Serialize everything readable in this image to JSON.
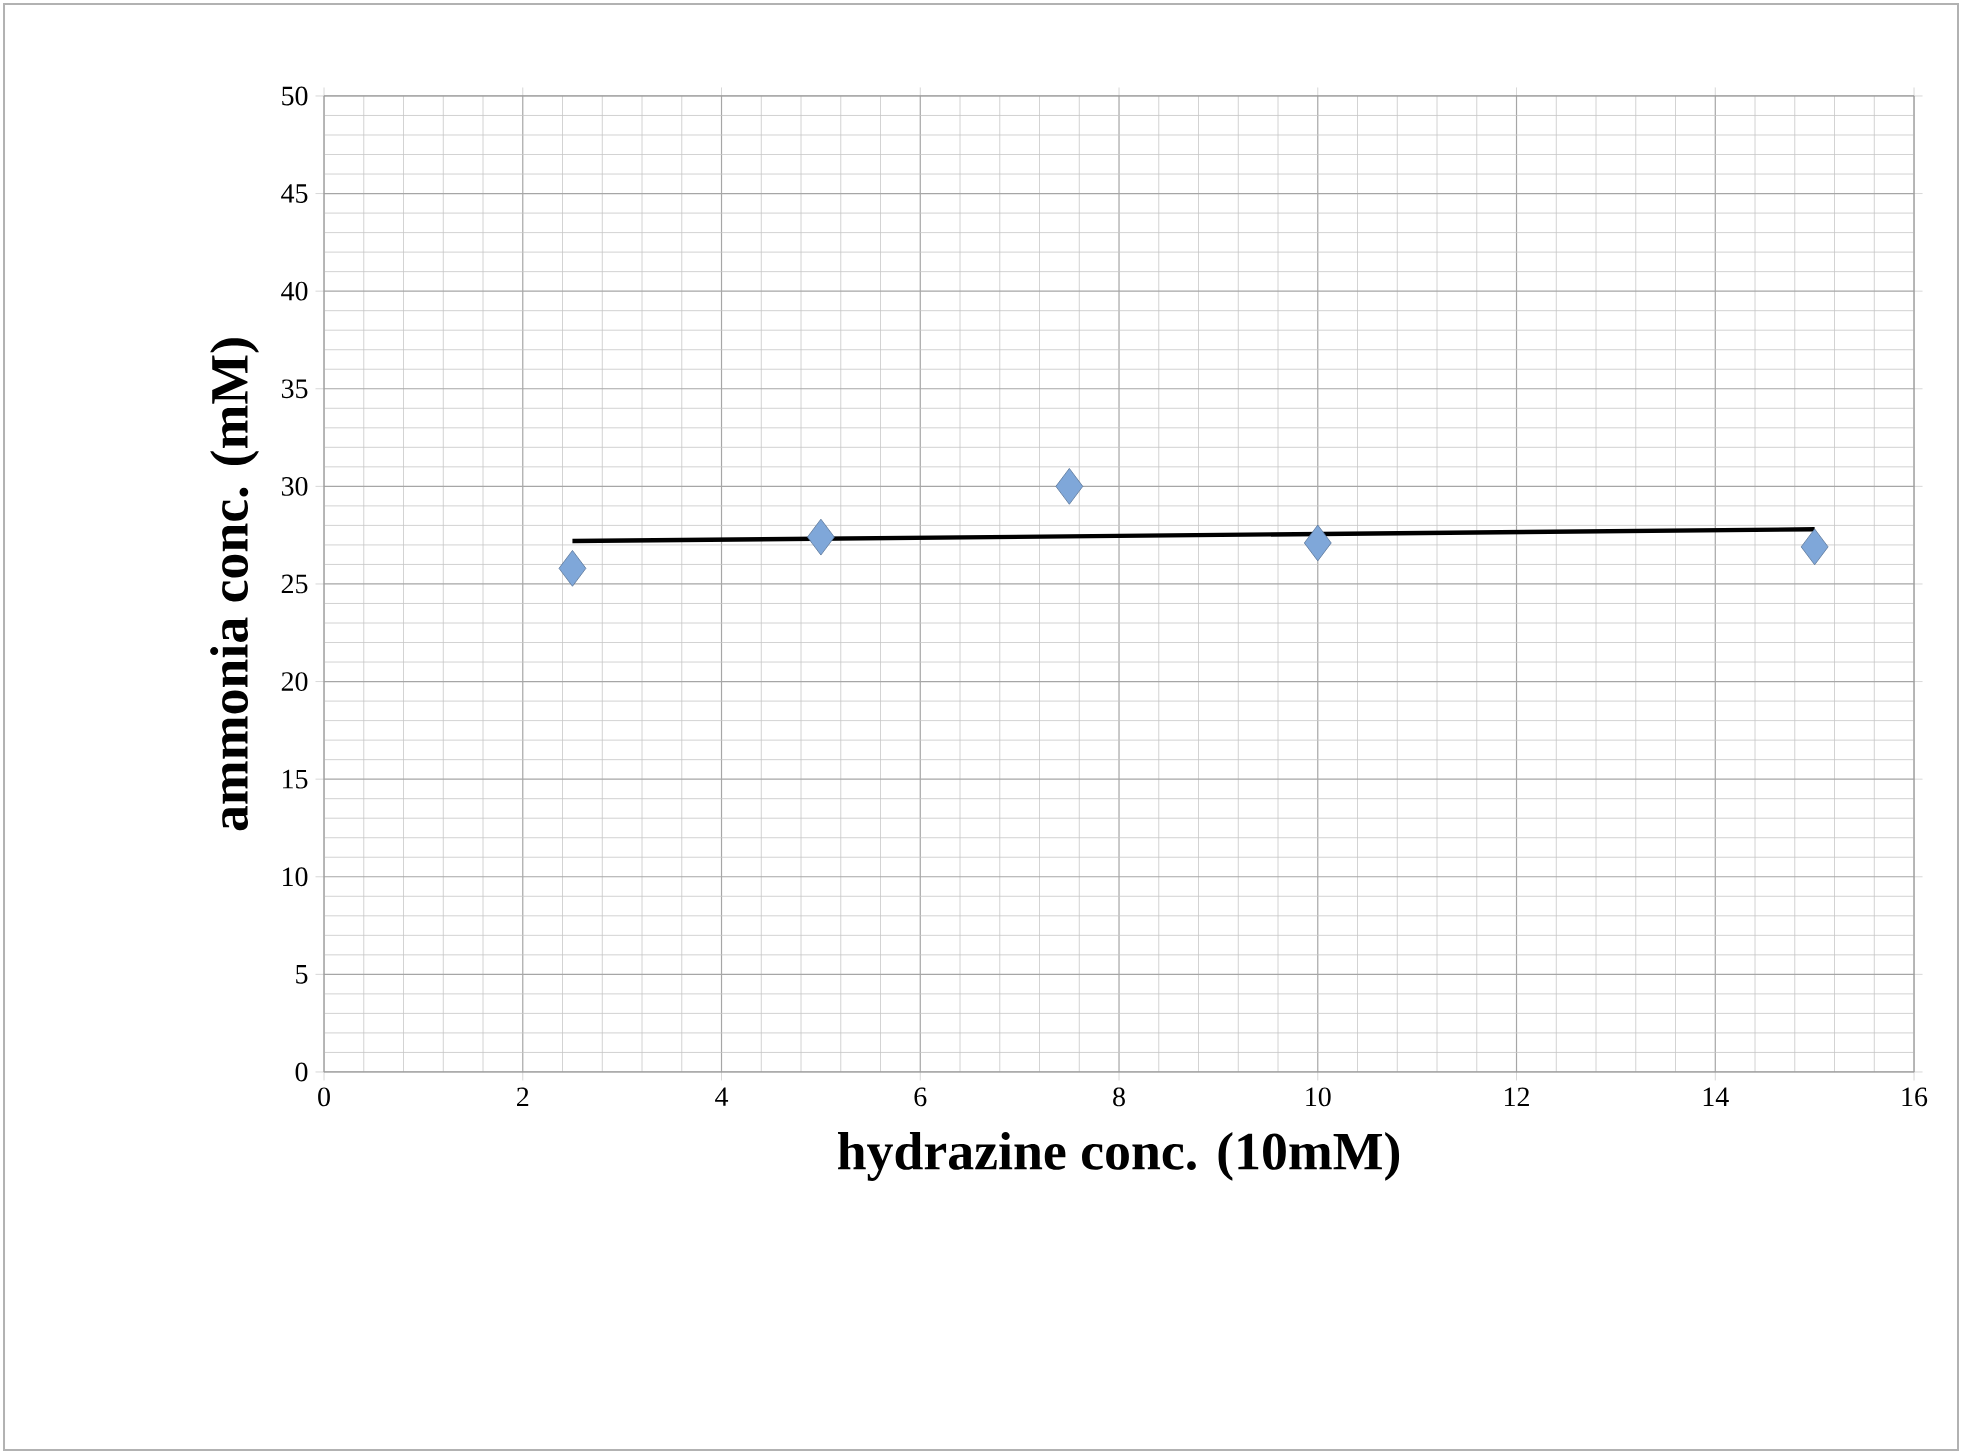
{
  "chart_data": {
    "type": "scatter",
    "xlabel": "hydrazine conc. (10mM)",
    "ylabel": "ammonia conc. (mM)",
    "xlim": [
      0,
      16
    ],
    "ylim": [
      0,
      50
    ],
    "xticks": [
      0,
      2,
      4,
      6,
      8,
      10,
      12,
      14,
      16
    ],
    "yticks": [
      0,
      5,
      10,
      15,
      20,
      25,
      30,
      35,
      40,
      45,
      50
    ],
    "grid": true,
    "marker": "diamond",
    "x": [
      2.5,
      5,
      7.5,
      10,
      15
    ],
    "series": [
      {
        "color": "#7fa7d9",
        "values": [
          25.8,
          27.4,
          30.0,
          27.1,
          26.9
        ]
      },
      {
        "type": "line",
        "color": "#000000",
        "x": [
          2.5,
          15
        ],
        "values": [
          27.2,
          27.8
        ],
        "marker": "none"
      }
    ]
  }
}
